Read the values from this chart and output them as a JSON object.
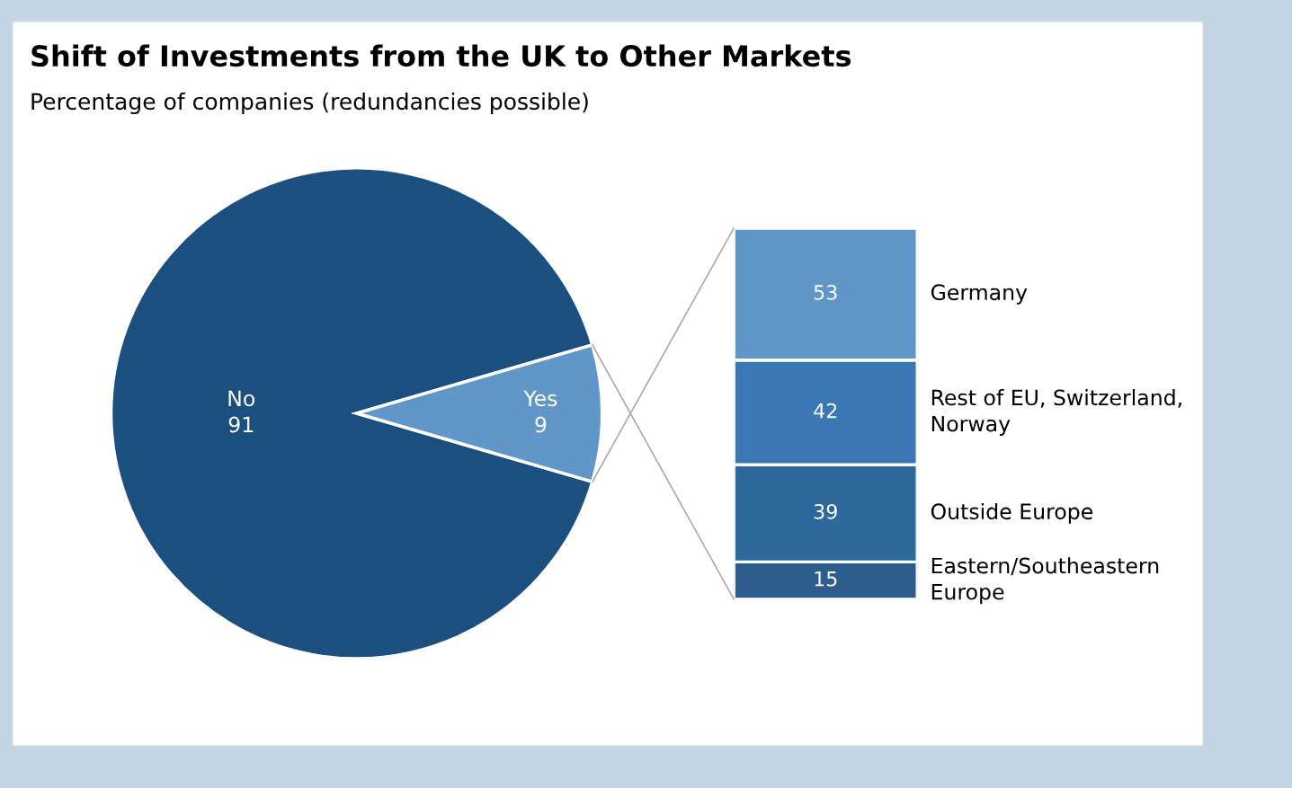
{
  "chart_data": [
    {
      "type": "pie",
      "title": "Shift of Investments from the UK to Other Markets",
      "subtitle": "Percentage of companies (redundancies possible)",
      "categories": [
        "No",
        "Yes"
      ],
      "values": [
        91,
        9
      ],
      "colors": [
        "#1b4f80",
        "#6096c8"
      ],
      "data_labels": true
    },
    {
      "type": "bar",
      "stacked": true,
      "categories": [
        null
      ],
      "data_labels": true,
      "tick_labels": false,
      "series": [
        {
          "name": "Eastern/Southeastern\nEurope",
          "color": "#2c5d8c",
          "values": [
            15
          ]
        },
        {
          "name": "Outside Europe",
          "color": "#2d6a9b",
          "values": [
            39
          ]
        },
        {
          "name": "Rest of EU, Switzerland,\nNorway",
          "color": "#3a77b4",
          "values": [
            42
          ]
        },
        {
          "name": "Germany",
          "color": "#6096c8",
          "values": [
            53
          ]
        }
      ]
    }
  ]
}
